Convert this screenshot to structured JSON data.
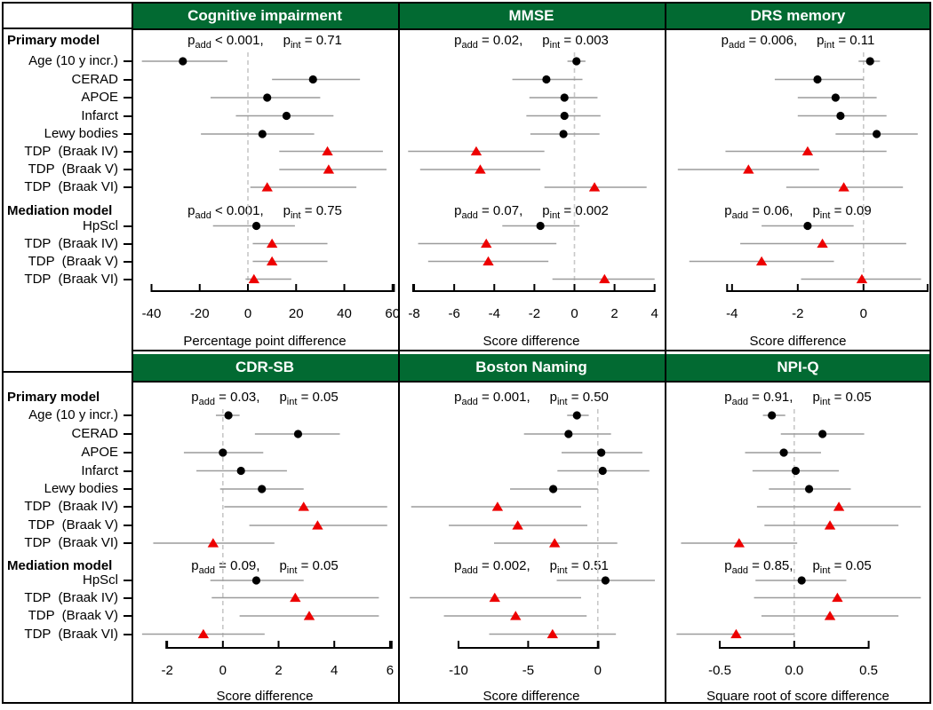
{
  "figure": {
    "colors": {
      "header_bg": "#026a32",
      "header_text": "#ffffff",
      "triangle": "#ed0000",
      "circle": "#000000",
      "ci_line": "#9c9c9c",
      "zero_line": "#c8c8c8",
      "border": "#000000"
    },
    "p_symbols": {
      "p": "p",
      "add": "add",
      "int": "int"
    },
    "row_groups": {
      "primary_header": "Primary model",
      "mediation_header": "Mediation model"
    },
    "row_labels": {
      "primary": [
        "Age (10 y incr.)",
        "CERAD",
        "APOE",
        "Infarct",
        "Lewy bodies",
        "TDP  (Braak IV)",
        "TDP  (Braak V)",
        "TDP  (Braak VI)"
      ],
      "mediation": [
        "HpScl",
        "TDP  (Braak IV)",
        "TDP  (Braak V)",
        "TDP  (Braak VI)"
      ]
    }
  },
  "chart_data": [
    {
      "type": "scatter",
      "title": "Cognitive impairment",
      "xlabel": "Percentage point difference",
      "row": 0,
      "col": 0,
      "xdomain": [
        -48.3,
        62.3
      ],
      "axis_span": [
        -40,
        60.6
      ],
      "ticks": [
        {
          "v": -40,
          "label": "-40"
        },
        {
          "v": -20,
          "label": "-20"
        },
        {
          "v": 0,
          "label": "0"
        },
        {
          "v": 20,
          "label": "20"
        },
        {
          "v": 40,
          "label": "40"
        },
        {
          "v": 60,
          "label": "60"
        }
      ],
      "p_primary": {
        "add": "< 0.001,",
        "int": "= 0.71"
      },
      "p_mediation": {
        "add": "< 0.001,",
        "int": "= 0.75"
      },
      "primary": [
        {
          "est": -27,
          "lo": -44,
          "hi": -8.5,
          "marker": "circle"
        },
        {
          "est": 27,
          "lo": 10,
          "hi": 46.5,
          "marker": "circle"
        },
        {
          "est": 8,
          "lo": -15.5,
          "hi": 30,
          "marker": "circle"
        },
        {
          "est": 16,
          "lo": -5,
          "hi": 35.5,
          "marker": "circle"
        },
        {
          "est": 6,
          "lo": -19.5,
          "hi": 27.5,
          "marker": "circle"
        },
        {
          "est": 33,
          "lo": 13,
          "hi": 56,
          "marker": "triangle"
        },
        {
          "est": 33.5,
          "lo": 13,
          "hi": 57.5,
          "marker": "triangle"
        },
        {
          "est": 8,
          "lo": 1,
          "hi": 45,
          "marker": "triangle"
        }
      ],
      "mediation": [
        {
          "est": 3.5,
          "lo": -14.5,
          "hi": 19.5,
          "marker": "circle"
        },
        {
          "est": 10,
          "lo": 2,
          "hi": 33,
          "marker": "triangle"
        },
        {
          "est": 10,
          "lo": 2,
          "hi": 33,
          "marker": "triangle"
        },
        {
          "est": 2.5,
          "lo": -1,
          "hi": 18,
          "marker": "triangle"
        }
      ]
    },
    {
      "type": "scatter",
      "title": "MMSE",
      "xlabel": "Score difference",
      "row": 0,
      "col": 1,
      "xdomain": [
        -8.8,
        4.5
      ],
      "axis_span": [
        -8.05,
        4.0
      ],
      "ticks": [
        {
          "v": -8,
          "label": "-8"
        },
        {
          "v": -6,
          "label": "-6"
        },
        {
          "v": -4,
          "label": "-4"
        },
        {
          "v": -2,
          "label": "-2"
        },
        {
          "v": 0,
          "label": "0"
        },
        {
          "v": 2,
          "label": "2"
        },
        {
          "v": 4,
          "label": "4"
        }
      ],
      "p_primary": {
        "add": "= 0.02,",
        "int": "= 0.003"
      },
      "p_mediation": {
        "add": "= 0.07,",
        "int": "= 0.002"
      },
      "primary": [
        {
          "est": 0.1,
          "lo": -0.35,
          "hi": 0.55,
          "marker": "circle"
        },
        {
          "est": -1.4,
          "lo": -3.1,
          "hi": 0.4,
          "marker": "circle"
        },
        {
          "est": -0.5,
          "lo": -2.25,
          "hi": 1.15,
          "marker": "circle"
        },
        {
          "est": -0.5,
          "lo": -2.4,
          "hi": 1.3,
          "marker": "circle"
        },
        {
          "est": -0.55,
          "lo": -2.2,
          "hi": 1.25,
          "marker": "circle"
        },
        {
          "est": -4.9,
          "lo": -8.3,
          "hi": -1.5,
          "marker": "triangle"
        },
        {
          "est": -4.7,
          "lo": -7.7,
          "hi": -1.7,
          "marker": "triangle"
        },
        {
          "est": 1.0,
          "lo": -1.5,
          "hi": 3.6,
          "marker": "triangle"
        }
      ],
      "mediation": [
        {
          "est": -1.7,
          "lo": -3.6,
          "hi": 0.25,
          "marker": "circle"
        },
        {
          "est": -4.4,
          "lo": -7.8,
          "hi": -0.9,
          "marker": "triangle"
        },
        {
          "est": -4.3,
          "lo": -7.3,
          "hi": -1.3,
          "marker": "triangle"
        },
        {
          "est": 1.5,
          "lo": -1.1,
          "hi": 4.0,
          "marker": "triangle"
        }
      ]
    },
    {
      "type": "scatter",
      "title": "DRS memory",
      "xlabel": "Score difference",
      "row": 0,
      "col": 2,
      "xdomain": [
        -6.05,
        2.06
      ],
      "axis_span": [
        -4.15,
        1.95
      ],
      "ticks": [
        {
          "v": -4,
          "label": "-4"
        },
        {
          "v": -2,
          "label": "-2"
        },
        {
          "v": 0,
          "label": "0"
        }
      ],
      "p_primary": {
        "add": "= 0.006,",
        "int": "= 0.11"
      },
      "p_mediation": {
        "add": "= 0.06,",
        "int": "= 0.09"
      },
      "primary": [
        {
          "est": 0.2,
          "lo": -0.15,
          "hi": 0.5,
          "marker": "circle"
        },
        {
          "est": -1.4,
          "lo": -2.7,
          "hi": 0.0,
          "marker": "circle"
        },
        {
          "est": -0.85,
          "lo": -2.0,
          "hi": 0.4,
          "marker": "circle"
        },
        {
          "est": -0.7,
          "lo": -2.0,
          "hi": 0.7,
          "marker": "circle"
        },
        {
          "est": 0.4,
          "lo": -0.85,
          "hi": 1.65,
          "marker": "circle"
        },
        {
          "est": -1.7,
          "lo": -4.2,
          "hi": 0.7,
          "marker": "triangle"
        },
        {
          "est": -3.5,
          "lo": -5.65,
          "hi": -1.35,
          "marker": "triangle"
        },
        {
          "est": -0.6,
          "lo": -2.35,
          "hi": 1.2,
          "marker": "triangle"
        }
      ],
      "mediation": [
        {
          "est": -1.7,
          "lo": -3.1,
          "hi": -0.3,
          "marker": "circle"
        },
        {
          "est": -1.25,
          "lo": -3.75,
          "hi": 1.3,
          "marker": "triangle"
        },
        {
          "est": -3.1,
          "lo": -5.3,
          "hi": -0.9,
          "marker": "triangle"
        },
        {
          "est": -0.05,
          "lo": -1.9,
          "hi": 1.75,
          "marker": "triangle"
        }
      ]
    },
    {
      "type": "scatter",
      "title": "CDR-SB",
      "xlabel": "Score difference",
      "row": 1,
      "col": 0,
      "xdomain": [
        -3.28,
        6.29
      ],
      "axis_span": [
        -2.03,
        6.06
      ],
      "ticks": [
        {
          "v": -2,
          "label": "-2"
        },
        {
          "v": 0,
          "label": "0"
        },
        {
          "v": 2,
          "label": "2"
        },
        {
          "v": 4,
          "label": "4"
        },
        {
          "v": 6,
          "label": "6"
        }
      ],
      "p_primary": {
        "add": "= 0.03,",
        "int": "= 0.05"
      },
      "p_mediation": {
        "add": "= 0.09,",
        "int": "= 0.05"
      },
      "primary": [
        {
          "est": 0.2,
          "lo": -0.25,
          "hi": 0.6,
          "marker": "circle"
        },
        {
          "est": 2.7,
          "lo": 1.15,
          "hi": 4.2,
          "marker": "circle"
        },
        {
          "est": 0.0,
          "lo": -1.4,
          "hi": 1.45,
          "marker": "circle"
        },
        {
          "est": 0.65,
          "lo": -0.95,
          "hi": 2.3,
          "marker": "circle"
        },
        {
          "est": 1.4,
          "lo": -0.1,
          "hi": 2.9,
          "marker": "circle"
        },
        {
          "est": 2.9,
          "lo": 0.05,
          "hi": 5.9,
          "marker": "triangle"
        },
        {
          "est": 3.4,
          "lo": 0.95,
          "hi": 5.9,
          "marker": "triangle"
        },
        {
          "est": -0.35,
          "lo": -2.5,
          "hi": 1.85,
          "marker": "triangle"
        }
      ],
      "mediation": [
        {
          "est": 1.2,
          "lo": -0.45,
          "hi": 2.9,
          "marker": "circle"
        },
        {
          "est": 2.6,
          "lo": -0.4,
          "hi": 5.6,
          "marker": "triangle"
        },
        {
          "est": 3.1,
          "lo": 0.6,
          "hi": 5.6,
          "marker": "triangle"
        },
        {
          "est": -0.7,
          "lo": -2.9,
          "hi": 1.5,
          "marker": "triangle"
        }
      ]
    },
    {
      "type": "scatter",
      "title": "Boston Naming",
      "xlabel": "Score difference",
      "row": 1,
      "col": 1,
      "xdomain": [
        -14.34,
        4.8
      ],
      "axis_span": [
        -10,
        0.05
      ],
      "ticks": [
        {
          "v": -10,
          "label": "-10"
        },
        {
          "v": -5,
          "label": "-5"
        },
        {
          "v": 0,
          "label": "0"
        }
      ],
      "p_primary": {
        "add": "= 0.001,",
        "int": "= 0.50"
      },
      "p_mediation": {
        "add": "= 0.002,",
        "int": "= 0.51"
      },
      "primary": [
        {
          "est": -1.5,
          "lo": -2.2,
          "hi": -0.65,
          "marker": "circle"
        },
        {
          "est": -2.1,
          "lo": -5.3,
          "hi": 0.95,
          "marker": "circle"
        },
        {
          "est": 0.25,
          "lo": -2.6,
          "hi": 3.2,
          "marker": "circle"
        },
        {
          "est": 0.35,
          "lo": -2.9,
          "hi": 3.7,
          "marker": "circle"
        },
        {
          "est": -3.2,
          "lo": -6.3,
          "hi": 0.0,
          "marker": "circle"
        },
        {
          "est": -7.2,
          "lo": -13.4,
          "hi": -1.2,
          "marker": "triangle"
        },
        {
          "est": -5.75,
          "lo": -10.7,
          "hi": -0.75,
          "marker": "triangle"
        },
        {
          "est": -3.1,
          "lo": -7.45,
          "hi": 1.4,
          "marker": "triangle"
        }
      ],
      "mediation": [
        {
          "est": 0.55,
          "lo": -2.95,
          "hi": 4.1,
          "marker": "circle"
        },
        {
          "est": -7.4,
          "lo": -13.5,
          "hi": -1.2,
          "marker": "triangle"
        },
        {
          "est": -5.9,
          "lo": -11.05,
          "hi": -0.8,
          "marker": "triangle"
        },
        {
          "est": -3.25,
          "lo": -7.8,
          "hi": 1.3,
          "marker": "triangle"
        }
      ]
    },
    {
      "type": "scatter",
      "title": "NPI-Q",
      "xlabel": "Square root of score difference",
      "row": 1,
      "col": 2,
      "xdomain": [
        -0.87,
        0.92
      ],
      "axis_span": [
        -0.5,
        0.5
      ],
      "ticks": [
        {
          "v": -0.5,
          "label": "-0.5"
        },
        {
          "v": 0,
          "label": "0.0"
        },
        {
          "v": 0.5,
          "label": "0.5"
        }
      ],
      "p_primary": {
        "add": "= 0.91,",
        "int": "= 0.05"
      },
      "p_mediation": {
        "add": "= 0.85,",
        "int": "= 0.05"
      },
      "primary": [
        {
          "est": -0.15,
          "lo": -0.21,
          "hi": -0.06,
          "marker": "circle"
        },
        {
          "est": 0.19,
          "lo": -0.09,
          "hi": 0.47,
          "marker": "circle"
        },
        {
          "est": -0.07,
          "lo": -0.33,
          "hi": 0.18,
          "marker": "circle"
        },
        {
          "est": 0.01,
          "lo": -0.28,
          "hi": 0.3,
          "marker": "circle"
        },
        {
          "est": 0.1,
          "lo": -0.17,
          "hi": 0.38,
          "marker": "circle"
        },
        {
          "est": 0.3,
          "lo": -0.25,
          "hi": 0.85,
          "marker": "triangle"
        },
        {
          "est": 0.24,
          "lo": -0.2,
          "hi": 0.7,
          "marker": "triangle"
        },
        {
          "est": -0.37,
          "lo": -0.76,
          "hi": 0.02,
          "marker": "triangle"
        }
      ],
      "mediation": [
        {
          "est": 0.05,
          "lo": -0.26,
          "hi": 0.35,
          "marker": "circle"
        },
        {
          "est": 0.29,
          "lo": -0.27,
          "hi": 0.85,
          "marker": "triangle"
        },
        {
          "est": 0.24,
          "lo": -0.22,
          "hi": 0.7,
          "marker": "triangle"
        },
        {
          "est": -0.39,
          "lo": -0.79,
          "hi": 0.0,
          "marker": "triangle"
        }
      ]
    }
  ]
}
